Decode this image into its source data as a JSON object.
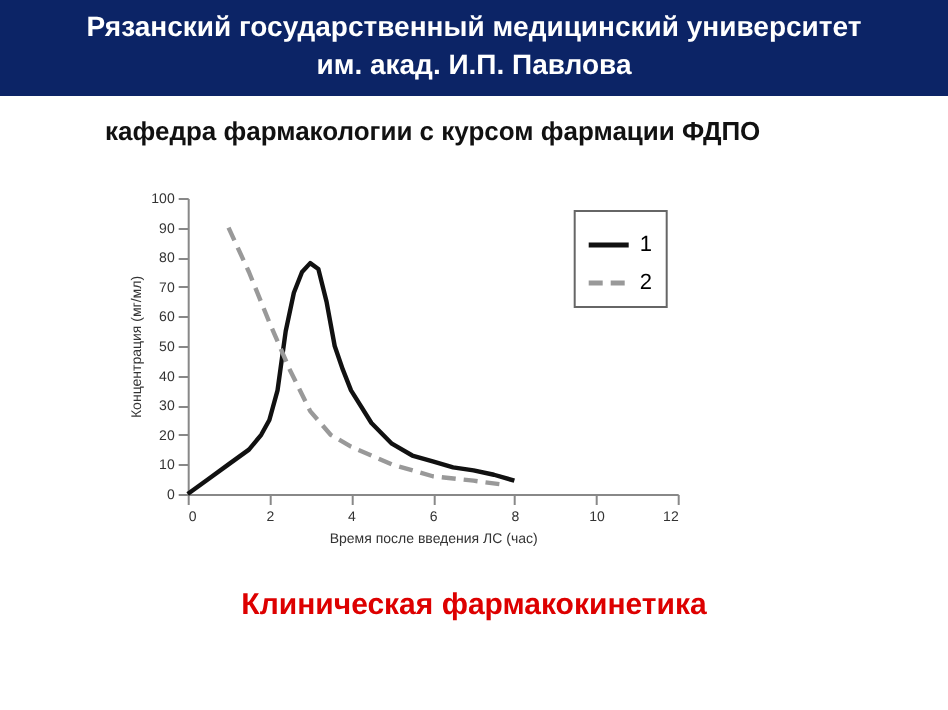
{
  "chart_data": {
    "type": "line",
    "title": "Рязанский государственный медицинский университет\nим. акад. И.П. Павлова",
    "subtitle": "кафедра фармакологии с курсом фармации ФДПО",
    "xlabel": "Время после введения ЛС (час)",
    "ylabel": "Концентрация (мг/мл)",
    "annotations": [
      "Клиническая фармакокинетика"
    ],
    "xlim": [
      0,
      12
    ],
    "xticks": [
      0,
      2,
      4,
      6,
      8,
      10,
      12
    ],
    "ylim": [
      0,
      100
    ],
    "yticks": [
      0,
      10,
      20,
      30,
      40,
      50,
      60,
      70,
      80,
      90,
      100
    ],
    "grid": false,
    "legend": "top right",
    "marker": "none",
    "series": [
      {
        "name": "1",
        "color": "#111111",
        "line_style": "solid",
        "x": [
          0,
          0.5,
          1,
          1.5,
          1.8,
          2,
          2.2,
          2.4,
          2.6,
          2.8,
          3,
          3.2,
          3.4,
          3.6,
          3.8,
          4,
          4.5,
          5,
          5.5,
          6,
          6.5,
          7,
          7.5,
          8
        ],
        "values": [
          0,
          5,
          10,
          15,
          20,
          25,
          35,
          55,
          68,
          75,
          78,
          76,
          65,
          50,
          42,
          35,
          24,
          17,
          13,
          11,
          9,
          8,
          6.5,
          4.5
        ]
      },
      {
        "name": "2",
        "color": "#999999",
        "line_style": "dashed",
        "x": [
          1,
          1.5,
          2,
          2.5,
          3,
          3.5,
          4,
          5,
          6,
          7,
          7.8
        ],
        "values": [
          90,
          75,
          58,
          42,
          28,
          20,
          16,
          10,
          6,
          4.5,
          3
        ]
      }
    ]
  }
}
